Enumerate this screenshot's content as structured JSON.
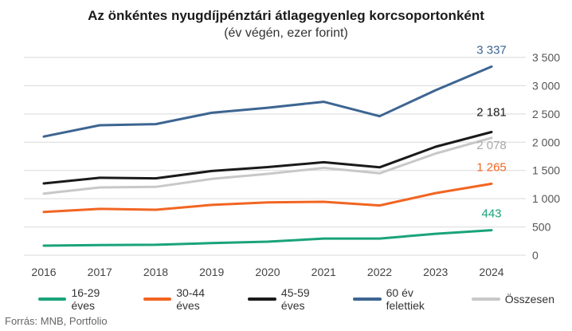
{
  "chart_data": {
    "type": "line",
    "title": "Az önkéntes nyugdíjpénztári átlagegyenleg korcsoportonként",
    "subtitle": "(év végén, ezer forint)",
    "source": "Forrás: MNB, Portfolio",
    "x": [
      "2016",
      "2017",
      "2018",
      "2019",
      "2020",
      "2021",
      "2022",
      "2023",
      "2024"
    ],
    "ylim": [
      0,
      3500
    ],
    "yticks": [
      "0",
      "500",
      "1 000",
      "1 500",
      "2 000",
      "2 500",
      "3 000",
      "3 500"
    ],
    "ytick_values": [
      0,
      500,
      1000,
      1500,
      2000,
      2500,
      3000,
      3500
    ],
    "grid": true,
    "legend_position": "bottom",
    "series": [
      {
        "name": "16-29 éves",
        "color": "#1aa37a",
        "values": [
          170,
          180,
          185,
          215,
          240,
          295,
          295,
          380,
          443
        ],
        "end_label": "443"
      },
      {
        "name": "30-44 éves",
        "color": "#f26522",
        "values": [
          765,
          820,
          805,
          890,
          935,
          945,
          880,
          1100,
          1265
        ],
        "end_label": "1 265"
      },
      {
        "name": "45-59 éves",
        "color": "#1a1a1a",
        "values": [
          1270,
          1370,
          1360,
          1490,
          1560,
          1645,
          1555,
          1920,
          2181
        ],
        "end_label": "2 181"
      },
      {
        "name": "60 év felettiek",
        "color": "#3d6591",
        "values": [
          2100,
          2300,
          2320,
          2520,
          2610,
          2715,
          2460,
          2920,
          3337
        ],
        "end_label": "3 337"
      },
      {
        "name": "Összesen",
        "color": "#c8c8c8",
        "values": [
          1090,
          1200,
          1210,
          1350,
          1440,
          1545,
          1450,
          1800,
          2078
        ],
        "end_label": "2 078"
      }
    ]
  }
}
